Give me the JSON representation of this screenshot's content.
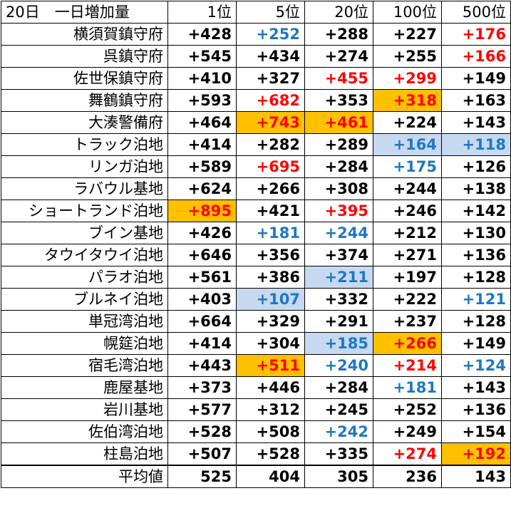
{
  "header": {
    "corner": "20日　一日増加量",
    "ranks": [
      "1位",
      "5位",
      "20位",
      "100位",
      "500位"
    ]
  },
  "rows": [
    {
      "name": "横須賀鎮守府",
      "values": [
        "+428",
        "+252",
        "+288",
        "+227",
        "+176"
      ],
      "colors": [
        "black",
        "blue",
        "black",
        "black",
        "red"
      ],
      "bg": [
        "",
        "",
        "",
        "",
        ""
      ]
    },
    {
      "name": "呉鎮守府",
      "values": [
        "+545",
        "+434",
        "+274",
        "+255",
        "+166"
      ],
      "colors": [
        "black",
        "black",
        "black",
        "black",
        "red"
      ],
      "bg": [
        "",
        "",
        "",
        "",
        ""
      ]
    },
    {
      "name": "佐世保鎮守府",
      "values": [
        "+410",
        "+327",
        "+455",
        "+299",
        "+149"
      ],
      "colors": [
        "black",
        "black",
        "red",
        "red",
        "black"
      ],
      "bg": [
        "",
        "",
        "",
        "",
        ""
      ]
    },
    {
      "name": "舞鶴鎮守府",
      "values": [
        "+593",
        "+682",
        "+353",
        "+318",
        "+163"
      ],
      "colors": [
        "black",
        "red",
        "black",
        "red",
        "black"
      ],
      "bg": [
        "",
        "",
        "",
        "orange",
        ""
      ]
    },
    {
      "name": "大湊警備府",
      "values": [
        "+464",
        "+743",
        "+461",
        "+224",
        "+143"
      ],
      "colors": [
        "black",
        "red",
        "red",
        "black",
        "black"
      ],
      "bg": [
        "",
        "orange",
        "orange",
        "",
        ""
      ]
    },
    {
      "name": "トラック泊地",
      "values": [
        "+414",
        "+282",
        "+289",
        "+164",
        "+118"
      ],
      "colors": [
        "black",
        "black",
        "black",
        "blue",
        "blue"
      ],
      "bg": [
        "",
        "",
        "",
        "lightblue",
        "lightblue"
      ]
    },
    {
      "name": "リンガ泊地",
      "values": [
        "+589",
        "+695",
        "+284",
        "+175",
        "+126"
      ],
      "colors": [
        "black",
        "red",
        "black",
        "blue",
        "black"
      ],
      "bg": [
        "",
        "",
        "",
        "",
        ""
      ]
    },
    {
      "name": "ラバウル基地",
      "values": [
        "+624",
        "+266",
        "+308",
        "+244",
        "+138"
      ],
      "colors": [
        "black",
        "black",
        "black",
        "black",
        "black"
      ],
      "bg": [
        "",
        "",
        "",
        "",
        ""
      ]
    },
    {
      "name": "ショートランド泊地",
      "values": [
        "+895",
        "+421",
        "+395",
        "+246",
        "+142"
      ],
      "colors": [
        "red",
        "black",
        "red",
        "black",
        "black"
      ],
      "bg": [
        "orange",
        "",
        "",
        "",
        ""
      ]
    },
    {
      "name": "ブイン基地",
      "values": [
        "+426",
        "+181",
        "+244",
        "+212",
        "+130"
      ],
      "colors": [
        "black",
        "blue",
        "blue",
        "black",
        "black"
      ],
      "bg": [
        "",
        "",
        "",
        "",
        ""
      ]
    },
    {
      "name": "タウイタウイ泊地",
      "values": [
        "+646",
        "+356",
        "+374",
        "+271",
        "+136"
      ],
      "colors": [
        "black",
        "black",
        "black",
        "black",
        "black"
      ],
      "bg": [
        "",
        "",
        "",
        "",
        ""
      ]
    },
    {
      "name": "パラオ泊地",
      "values": [
        "+561",
        "+386",
        "+211",
        "+197",
        "+128"
      ],
      "colors": [
        "black",
        "black",
        "blue",
        "black",
        "black"
      ],
      "bg": [
        "",
        "",
        "lightblue",
        "",
        ""
      ]
    },
    {
      "name": "ブルネイ泊地",
      "values": [
        "+403",
        "+107",
        "+332",
        "+222",
        "+121"
      ],
      "colors": [
        "black",
        "blue",
        "black",
        "black",
        "blue"
      ],
      "bg": [
        "",
        "lightblue",
        "",
        "",
        ""
      ]
    },
    {
      "name": "単冠湾泊地",
      "values": [
        "+664",
        "+329",
        "+291",
        "+237",
        "+128"
      ],
      "colors": [
        "black",
        "black",
        "black",
        "black",
        "black"
      ],
      "bg": [
        "",
        "",
        "",
        "",
        ""
      ]
    },
    {
      "name": "幌筵泊地",
      "values": [
        "+414",
        "+304",
        "+185",
        "+266",
        "+149"
      ],
      "colors": [
        "black",
        "black",
        "blue",
        "red",
        "black"
      ],
      "bg": [
        "",
        "",
        "lightblue",
        "orange",
        ""
      ]
    },
    {
      "name": "宿毛湾泊地",
      "values": [
        "+443",
        "+511",
        "+240",
        "+214",
        "+124"
      ],
      "colors": [
        "black",
        "red",
        "blue",
        "red",
        "blue"
      ],
      "bg": [
        "",
        "orange",
        "",
        "",
        ""
      ]
    },
    {
      "name": "鹿屋基地",
      "values": [
        "+373",
        "+446",
        "+284",
        "+181",
        "+143"
      ],
      "colors": [
        "black",
        "black",
        "black",
        "blue",
        "black"
      ],
      "bg": [
        "",
        "",
        "",
        "",
        ""
      ]
    },
    {
      "name": "岩川基地",
      "values": [
        "+577",
        "+312",
        "+245",
        "+252",
        "+136"
      ],
      "colors": [
        "black",
        "black",
        "black",
        "black",
        "black"
      ],
      "bg": [
        "",
        "",
        "",
        "",
        ""
      ]
    },
    {
      "name": "佐伯湾泊地",
      "values": [
        "+528",
        "+508",
        "+242",
        "+249",
        "+154"
      ],
      "colors": [
        "black",
        "black",
        "blue",
        "black",
        "black"
      ],
      "bg": [
        "",
        "",
        "",
        "",
        ""
      ]
    },
    {
      "name": "柱島泊地",
      "values": [
        "+507",
        "+528",
        "+335",
        "+274",
        "+192"
      ],
      "colors": [
        "black",
        "black",
        "black",
        "red",
        "red"
      ],
      "bg": [
        "",
        "",
        "",
        "",
        "orange"
      ]
    }
  ],
  "average": {
    "label": "平均値",
    "values": [
      "525",
      "404",
      "305",
      "236",
      "143"
    ]
  },
  "palette": {
    "red": "#ff0000",
    "blue": "#1f77c4",
    "orange": "#ffc000",
    "lightblue": "#c6d9f1"
  }
}
